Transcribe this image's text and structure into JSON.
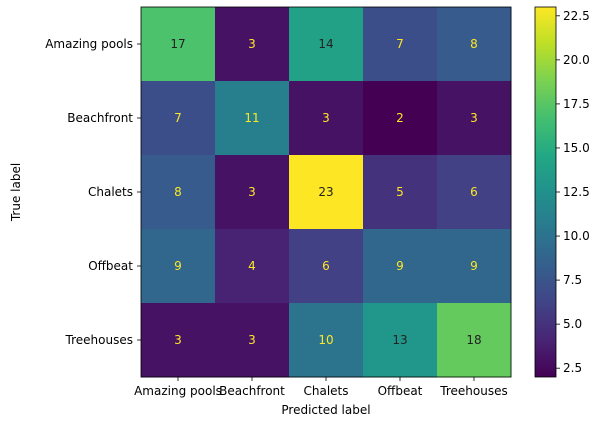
{
  "chart_data": {
    "type": "heatmap",
    "title": "",
    "xlabel": "Predicted label",
    "ylabel": "True label",
    "x_categories": [
      "Amazing pools",
      "Beachfront",
      "Chalets",
      "Offbeat",
      "Treehouses"
    ],
    "y_categories": [
      "Amazing pools",
      "Beachfront",
      "Chalets",
      "Offbeat",
      "Treehouses"
    ],
    "values": [
      [
        17,
        3,
        14,
        7,
        8
      ],
      [
        7,
        11,
        3,
        2,
        3
      ],
      [
        8,
        3,
        23,
        5,
        6
      ],
      [
        9,
        4,
        6,
        9,
        9
      ],
      [
        3,
        3,
        10,
        13,
        18
      ]
    ],
    "colormap": "viridis",
    "colorbar": {
      "min": 2,
      "max": 23,
      "ticks": [
        2.5,
        5.0,
        7.5,
        10.0,
        12.5,
        15.0,
        17.5,
        20.0,
        22.5
      ],
      "tick_labels": [
        "2.5",
        "5.0",
        "7.5",
        "10.0",
        "12.5",
        "15.0",
        "17.5",
        "20.0",
        "22.5"
      ]
    },
    "text_colors": {
      "dark_bg": "#fde725",
      "light_bg": "#222222"
    },
    "grid": false
  }
}
